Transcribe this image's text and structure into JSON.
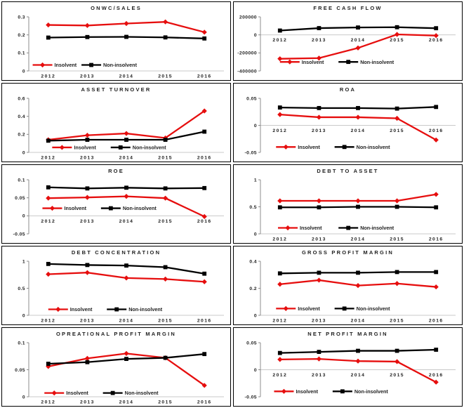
{
  "page": {
    "background": "#ffffff",
    "panel_border": "#000000",
    "axis_color": "#8c8c8c",
    "baseline_color": "#c9c9c9",
    "text_color": "#1f1f1f"
  },
  "series_styles": [
    {
      "key": "insolvent",
      "color": "#e60e0e",
      "marker": "diamond"
    },
    {
      "key": "non_insolvent",
      "color": "#000000",
      "marker": "square"
    }
  ],
  "chart_data": [
    {
      "type": "line",
      "title": "ONWC/SALES",
      "categories": [
        "2012",
        "2013",
        "2014",
        "2015",
        "2016"
      ],
      "ylim": [
        0,
        0.3
      ],
      "yticks": [
        {
          "v": 0,
          "label": "0"
        },
        {
          "v": 0.1,
          "label": "0.1"
        },
        {
          "v": 0.2,
          "label": "0.2"
        },
        {
          "v": 0.3,
          "label": "0.3"
        }
      ],
      "grid": false,
      "legend_position": "inside-bottom",
      "legend_y": 0.033,
      "legend_x": [
        0.02,
        0.27
      ],
      "series": [
        {
          "name": "Insolvent",
          "values": [
            0.255,
            0.252,
            0.263,
            0.272,
            0.215
          ]
        },
        {
          "name": "Non-insolvent",
          "values": [
            0.185,
            0.188,
            0.189,
            0.186,
            0.18
          ]
        }
      ]
    },
    {
      "type": "line",
      "title": "FREE CASH FLOW",
      "categories": [
        "2012",
        "2013",
        "2014",
        "2015",
        "2016"
      ],
      "ylim": [
        -400000,
        200000
      ],
      "yticks": [
        {
          "v": 200000,
          "label": "200000"
        },
        {
          "v": 0,
          "label": "0"
        },
        {
          "v": -200000,
          "label": "-200000"
        },
        {
          "v": -400000,
          "label": "-400000"
        }
      ],
      "grid": false,
      "legend_position": "inside-bottom",
      "legend_y": -300000,
      "legend_x": [
        0.1,
        0.4
      ],
      "series": [
        {
          "name": "Insolvent",
          "values": [
            -265000,
            -258000,
            -145000,
            5000,
            -8000
          ]
        },
        {
          "name": "Non-insolvent",
          "values": [
            48000,
            75000,
            82000,
            85000,
            74000
          ]
        }
      ]
    },
    {
      "type": "line",
      "title": "ASSET TURNOVER",
      "categories": [
        "2012",
        "2013",
        "2014",
        "2015",
        "2016"
      ],
      "ylim": [
        0,
        0.6
      ],
      "yticks": [
        {
          "v": 0,
          "label": "0"
        },
        {
          "v": 0.2,
          "label": "0.2"
        },
        {
          "v": 0.4,
          "label": "0.4"
        },
        {
          "v": 0.6,
          "label": "0.6"
        }
      ],
      "grid": false,
      "legend_position": "inside-bottom",
      "legend_y": 0.055,
      "legend_x": [
        0.12,
        0.42
      ],
      "series": [
        {
          "name": "Insolvent",
          "values": [
            0.14,
            0.19,
            0.21,
            0.16,
            0.46
          ]
        },
        {
          "name": "Non-insolvent",
          "values": [
            0.13,
            0.14,
            0.14,
            0.14,
            0.23
          ]
        }
      ]
    },
    {
      "type": "line",
      "title": "ROA",
      "categories": [
        "2012",
        "2013",
        "2014",
        "2015",
        "2016"
      ],
      "ylim": [
        -0.05,
        0.05
      ],
      "yticks": [
        {
          "v": 0.05,
          "label": "0.05"
        },
        {
          "v": 0,
          "label": "0"
        },
        {
          "v": -0.05,
          "label": "-0.05"
        }
      ],
      "grid": false,
      "legend_position": "inside-bottom",
      "legend_y": -0.04,
      "legend_x": [
        0.08,
        0.38
      ],
      "series": [
        {
          "name": "Insolvent",
          "values": [
            0.02,
            0.015,
            0.015,
            0.013,
            -0.027
          ]
        },
        {
          "name": "Non-insolvent",
          "values": [
            0.033,
            0.032,
            0.032,
            0.031,
            0.034
          ]
        }
      ]
    },
    {
      "type": "line",
      "title": "ROE",
      "categories": [
        "2012",
        "2013",
        "2014",
        "2015",
        "2016"
      ],
      "ylim": [
        -0.05,
        0.1
      ],
      "yticks": [
        {
          "v": 0.1,
          "label": "0.1"
        },
        {
          "v": 0.05,
          "label": "0.05"
        },
        {
          "v": 0,
          "label": "0"
        },
        {
          "v": -0.05,
          "label": "-0.05"
        }
      ],
      "grid": false,
      "legend_position": "inside-middle",
      "legend_y": 0.021,
      "legend_x": [
        0.07,
        0.37
      ],
      "series": [
        {
          "name": "Insolvent",
          "values": [
            0.049,
            0.051,
            0.054,
            0.049,
            -0.002
          ]
        },
        {
          "name": "Non-insolvent",
          "values": [
            0.079,
            0.076,
            0.078,
            0.076,
            0.077
          ]
        }
      ]
    },
    {
      "type": "line",
      "title": "DEBT TO ASSET",
      "categories": [
        "2012",
        "2013",
        "2014",
        "2015",
        "2016"
      ],
      "ylim": [
        0,
        1
      ],
      "yticks": [
        {
          "v": 0,
          "label": "0"
        },
        {
          "v": 0.5,
          "label": "0.5"
        },
        {
          "v": 1,
          "label": "1"
        }
      ],
      "grid": false,
      "legend_position": "inside-bottom",
      "legend_y": 0.11,
      "legend_x": [
        0.09,
        0.4
      ],
      "series": [
        {
          "name": "Insolvent",
          "values": [
            0.61,
            0.61,
            0.61,
            0.61,
            0.73
          ]
        },
        {
          "name": "Non-insolvent",
          "values": [
            0.49,
            0.49,
            0.5,
            0.5,
            0.49
          ]
        }
      ]
    },
    {
      "type": "line",
      "title": "DEBT CONCENTRATION",
      "categories": [
        "2012",
        "2013",
        "2014",
        "2015",
        "2016"
      ],
      "ylim": [
        0,
        1
      ],
      "yticks": [
        {
          "v": 0,
          "label": "0"
        },
        {
          "v": 0.5,
          "label": "0.5"
        },
        {
          "v": 1,
          "label": "1"
        }
      ],
      "grid": false,
      "legend_position": "inside-bottom",
      "legend_y": 0.11,
      "legend_x": [
        0.1,
        0.4
      ],
      "series": [
        {
          "name": "Insolvent",
          "values": [
            0.76,
            0.79,
            0.69,
            0.67,
            0.62
          ]
        },
        {
          "name": "Non-insolvent",
          "values": [
            0.95,
            0.93,
            0.92,
            0.89,
            0.77
          ]
        }
      ]
    },
    {
      "type": "line",
      "title": "GROSS PROFIT MARGIN",
      "categories": [
        "2012",
        "2013",
        "2014",
        "2015",
        "2016"
      ],
      "ylim": [
        0,
        0.4
      ],
      "yticks": [
        {
          "v": 0,
          "label": "0"
        },
        {
          "v": 0.2,
          "label": "0.2"
        },
        {
          "v": 0.4,
          "label": "0.4"
        }
      ],
      "grid": false,
      "legend_position": "inside-bottom",
      "legend_y": 0.05,
      "legend_x": [
        0.08,
        0.38
      ],
      "series": [
        {
          "name": "Insolvent",
          "values": [
            0.23,
            0.26,
            0.22,
            0.235,
            0.21
          ]
        },
        {
          "name": "Non-insolvent",
          "values": [
            0.31,
            0.315,
            0.315,
            0.32,
            0.32
          ]
        }
      ]
    },
    {
      "type": "line",
      "title": "OPREATIONAL PROFIT MARGIN",
      "categories": [
        "2012",
        "2013",
        "2014",
        "2015",
        "2016"
      ],
      "ylim": [
        0,
        0.1
      ],
      "yticks": [
        {
          "v": 0,
          "label": "0"
        },
        {
          "v": 0.05,
          "label": "0.05"
        },
        {
          "v": 0.1,
          "label": "0.1"
        }
      ],
      "grid": false,
      "legend_position": "inside-bottom",
      "legend_y": 0.007,
      "legend_x": [
        0.08,
        0.38
      ],
      "series": [
        {
          "name": "Insolvent",
          "values": [
            0.056,
            0.071,
            0.08,
            0.072,
            0.021
          ]
        },
        {
          "name": "Non-insolvent",
          "values": [
            0.061,
            0.064,
            0.07,
            0.072,
            0.079
          ]
        }
      ]
    },
    {
      "type": "line",
      "title": "NET PROFIT MARGIN",
      "categories": [
        "2012",
        "2013",
        "2014",
        "2015",
        "2016"
      ],
      "ylim": [
        -0.05,
        0.05
      ],
      "yticks": [
        {
          "v": 0.05,
          "label": "0.05"
        },
        {
          "v": 0,
          "label": "0"
        },
        {
          "v": -0.05,
          "label": "-0.05"
        }
      ],
      "grid": false,
      "legend_position": "inside-bottom",
      "legend_y": -0.04,
      "legend_x": [
        0.07,
        0.37
      ],
      "series": [
        {
          "name": "Insolvent",
          "values": [
            0.019,
            0.02,
            0.016,
            0.015,
            -0.023
          ]
        },
        {
          "name": "Non-insolvent",
          "values": [
            0.031,
            0.033,
            0.035,
            0.035,
            0.037
          ]
        }
      ]
    }
  ]
}
